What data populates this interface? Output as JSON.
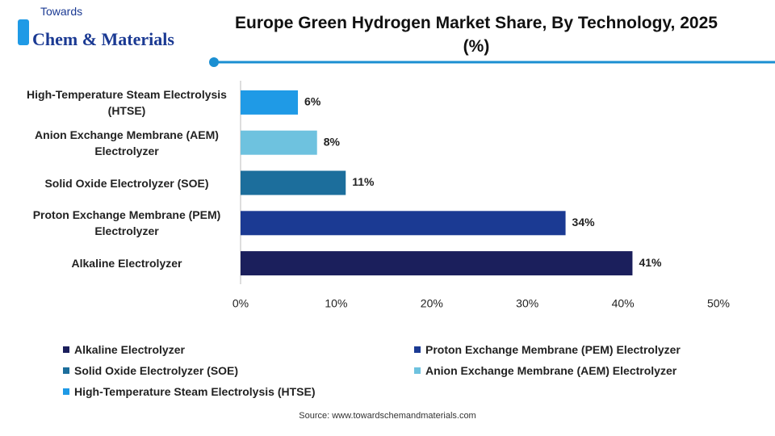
{
  "logo": {
    "top": "Towards",
    "name": "Chem & Materials"
  },
  "chart_data": {
    "type": "bar",
    "orientation": "horizontal",
    "title": "Europe Green Hydrogen Market Share, By Technology, 2025 (%)",
    "categories": [
      "Alkaline Electrolyzer",
      "Proton Exchange Membrane (PEM) Electrolyzer",
      "Solid Oxide Electrolyzer (SOE)",
      "Anion Exchange Membrane (AEM) Electrolyzer",
      "High-Temperature Steam Electrolysis (HTSE)"
    ],
    "values": [
      41,
      34,
      11,
      8,
      6
    ],
    "value_labels": [
      "41%",
      "34%",
      "11%",
      "8%",
      "6%"
    ],
    "colors": [
      "#1b1f5c",
      "#1b3a93",
      "#1c6e9c",
      "#6ec2df",
      "#1f9ae6"
    ],
    "xlim": [
      0,
      50
    ],
    "xticks": [
      {
        "value": 0,
        "label": "0%"
      },
      {
        "value": 10,
        "label": "10%"
      },
      {
        "value": 20,
        "label": "20%"
      },
      {
        "value": 30,
        "label": "30%"
      },
      {
        "value": 40,
        "label": "40%"
      },
      {
        "value": 50,
        "label": "50%"
      }
    ],
    "grid": false,
    "source": "Source: www.towardschemandmaterials.com"
  }
}
